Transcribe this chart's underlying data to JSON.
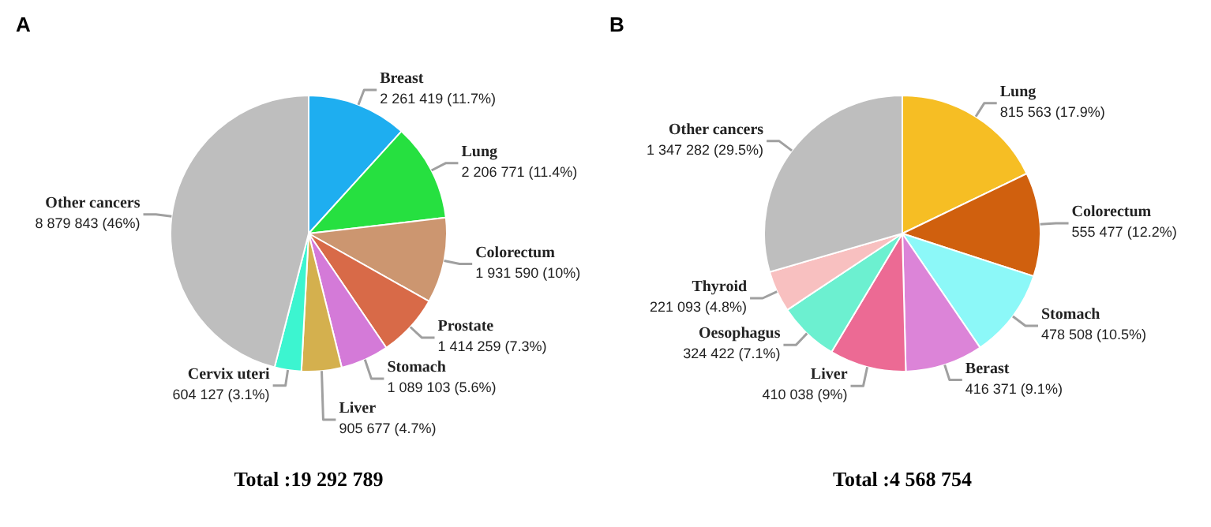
{
  "chart_data": [
    {
      "type": "pie",
      "title": "A",
      "categories": [
        "Breast",
        "Lung",
        "Colorectum",
        "Prostate",
        "Stomach",
        "Liver",
        "Cervix uteri",
        "Other cancers"
      ],
      "values": [
        2261419,
        2206771,
        1931590,
        1414259,
        1089103,
        905677,
        604127,
        8879843
      ],
      "colors": [
        "#1eaef0",
        "#26e040",
        "#cc9670",
        "#d86a48",
        "#d47ad8",
        "#d4b04e",
        "#3cf5d0",
        "#bebebe"
      ],
      "value_labels": [
        "2 261 419 (11.7%)",
        "2 206 771 (11.4%)",
        "1 931 590 (10%)",
        "1 414 259 (7.3%)",
        "1 089 103 (5.6%)",
        "905 677 (4.7%)",
        "604 127 (3.1%)",
        "8 879 843 (46%)"
      ],
      "annotations": [
        "Total :19 292 789"
      ],
      "legend": false
    },
    {
      "type": "pie",
      "title": "B",
      "categories": [
        "Lung",
        "Colorectum",
        "Stomach",
        "Berast",
        "Liver",
        "Oesophagus",
        "Thyroid",
        "Other cancers"
      ],
      "values": [
        815563,
        555477,
        478508,
        416371,
        410038,
        324422,
        221093,
        1347282
      ],
      "colors": [
        "#f6be24",
        "#d0600e",
        "#8cf8f8",
        "#dc84d8",
        "#ec6a94",
        "#6cf0d0",
        "#f8c0c0",
        "#bebebe"
      ],
      "value_labels": [
        "815 563 (17.9%)",
        "555 477 (12.2%)",
        "478 508 (10.5%)",
        "416 371 (9.1%)",
        "410 038 (9%)",
        "324 422 (7.1%)",
        "221 093 (4.8%)",
        "1 347 282 (29.5%)"
      ],
      "annotations": [
        "Total :4 568 754"
      ],
      "legend": false
    }
  ]
}
